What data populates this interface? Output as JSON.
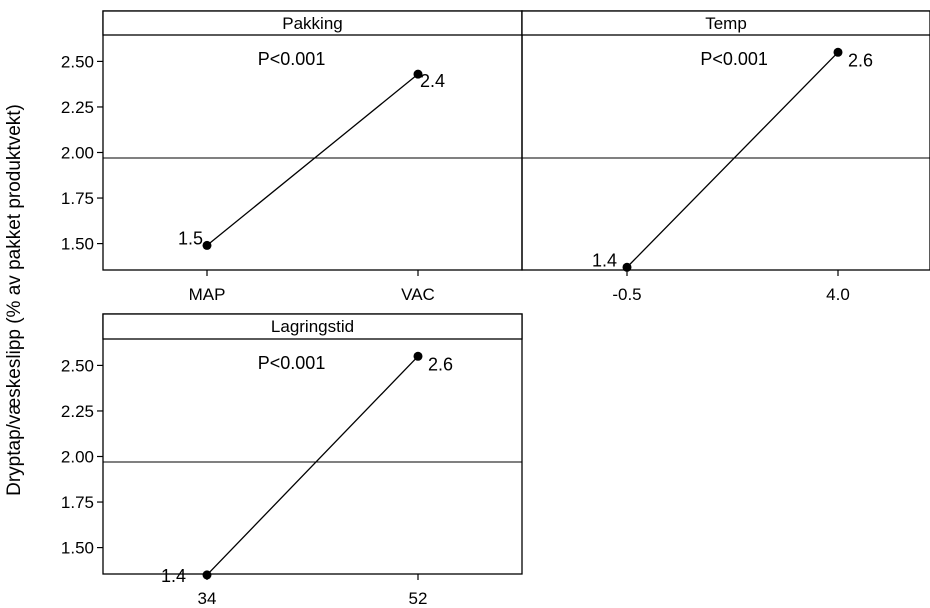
{
  "chart_data": {
    "type": "line",
    "ylabel": "Dryptap/væskeslipp (% av pakket produktvekt)",
    "ylim": [
      1.355,
      2.645
    ],
    "yticks": [
      "1.50",
      "1.75",
      "2.00",
      "2.25",
      "2.50"
    ],
    "reference_line": 1.97,
    "panels": [
      {
        "title": "Pakking",
        "p_value": "P<0.001",
        "categories": [
          "MAP",
          "VAC"
        ],
        "values": [
          1.49,
          2.43
        ],
        "labels": [
          "1.5",
          "2.4"
        ]
      },
      {
        "title": "Temp",
        "p_value": "P<0.001",
        "categories": [
          "-0.5",
          "4.0"
        ],
        "values": [
          1.37,
          2.55
        ],
        "labels": [
          "1.4",
          "2.6"
        ]
      },
      {
        "title": "Lagringstid",
        "p_value": "P<0.001",
        "categories": [
          "34",
          "52"
        ],
        "values": [
          1.35,
          2.55
        ],
        "labels": [
          "1.4",
          "2.6"
        ]
      }
    ]
  }
}
